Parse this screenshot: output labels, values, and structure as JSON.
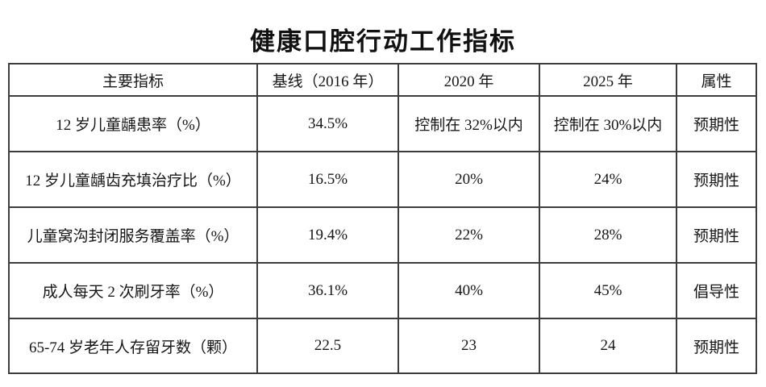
{
  "title": "健康口腔行动工作指标",
  "table": {
    "headers": [
      "主要指标",
      "基线（2016 年）",
      "2020 年",
      "2025 年",
      "属性"
    ],
    "rows": [
      [
        "12 岁儿童龋患率（%）",
        "34.5%",
        "控制在 32%以内",
        "控制在 30%以内",
        "预期性"
      ],
      [
        "12 岁儿童龋齿充填治疗比（%）",
        "16.5%",
        "20%",
        "24%",
        "预期性"
      ],
      [
        "儿童窝沟封闭服务覆盖率（%）",
        "19.4%",
        "22%",
        "28%",
        "预期性"
      ],
      [
        "成人每天 2 次刷牙率（%）",
        "36.1%",
        "40%",
        "45%",
        "倡导性"
      ],
      [
        "65-74 岁老年人存留牙数（颗）",
        "22.5",
        "23",
        "24",
        "预期性"
      ]
    ]
  },
  "colors": {
    "border": "#3d3d3d",
    "text": "#161616",
    "background": "#ffffff"
  }
}
